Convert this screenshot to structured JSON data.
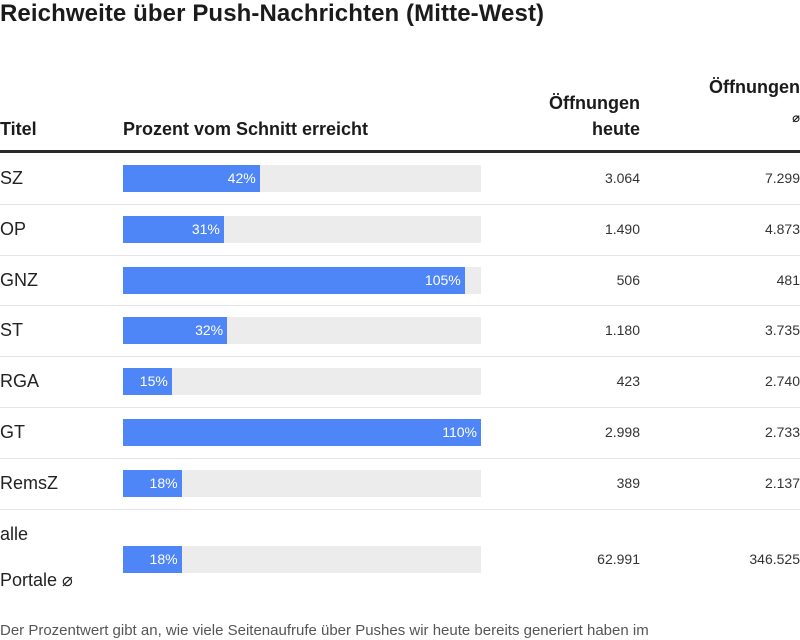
{
  "title": "Reichweite über Push-Nachrichten (Mitte-West)",
  "headers": {
    "title": "Titel",
    "bar": "Prozent vom Schnitt erreicht",
    "today_line1": "Öffnungen",
    "today_line2": "heute",
    "avg_line1": "Öffnungen",
    "avg_symbol": "⌀"
  },
  "chart_data": {
    "type": "bar",
    "categories": [
      "SZ",
      "OP",
      "GNZ",
      "ST",
      "RGA",
      "GT",
      "RemsZ",
      "alle Portale ⌀"
    ],
    "values": [
      42,
      31,
      105,
      32,
      15,
      110,
      18,
      18
    ],
    "value_labels": [
      "42%",
      "31%",
      "105%",
      "32%",
      "15%",
      "110%",
      "18%",
      "18%"
    ],
    "xlim": [
      0,
      110
    ],
    "bar_color": "#4f86f7",
    "track_color": "#ececec"
  },
  "rows": [
    {
      "title": "SZ",
      "pct": "42%",
      "today": "3.064",
      "avg": "7.299"
    },
    {
      "title": "OP",
      "pct": "31%",
      "today": "1.490",
      "avg": "4.873"
    },
    {
      "title": "GNZ",
      "pct": "105%",
      "today": "506",
      "avg": "481"
    },
    {
      "title": "ST",
      "pct": "32%",
      "today": "1.180",
      "avg": "3.735"
    },
    {
      "title": "RGA",
      "pct": "15%",
      "today": "423",
      "avg": "2.740"
    },
    {
      "title": "GT",
      "pct": "110%",
      "today": "2.998",
      "avg": "2.733"
    },
    {
      "title": "RemsZ",
      "pct": "18%",
      "today": "389",
      "avg": "2.137"
    },
    {
      "title_line1": "alle",
      "title_line2": "Portale ⌀",
      "pct": "18%",
      "today": "62.991",
      "avg": "346.525"
    }
  ],
  "footnote": "Der Prozentwert gibt an, wie viele Seitenaufrufe über Pushes wir heute bereits generiert haben im"
}
